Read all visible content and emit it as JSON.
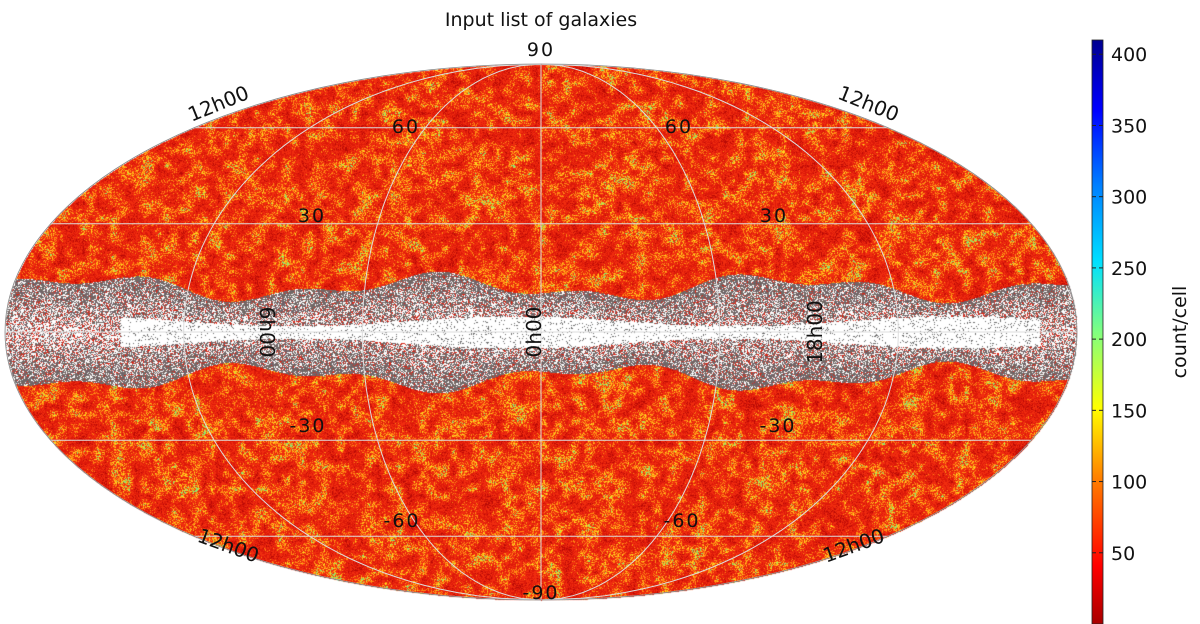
{
  "chart_data": {
    "type": "heatmap",
    "projection": "mollweide",
    "title": "Input list of galaxies",
    "colorbar": {
      "label": "count/cell",
      "ticks": [
        50,
        100,
        150,
        200,
        250,
        300,
        350,
        400
      ],
      "tick_labels": [
        "50",
        "100",
        "150",
        "200",
        "250",
        "300",
        "350",
        "400"
      ],
      "range": [
        0,
        410
      ],
      "colormap": "jet_reversed",
      "placement": "right"
    },
    "latitude_labels": [
      {
        "text": "90"
      },
      {
        "text": "60"
      },
      {
        "text": "60"
      },
      {
        "text": "30"
      },
      {
        "text": "30"
      },
      {
        "text": "-30"
      },
      {
        "text": "-30"
      },
      {
        "text": "-60"
      },
      {
        "text": "-60"
      },
      {
        "text": "-90"
      }
    ],
    "longitude_labels": [
      {
        "text": "12h00"
      },
      {
        "text": "12h00"
      },
      {
        "text": "12h00"
      },
      {
        "text": "12h00"
      },
      {
        "text": "6h00"
      },
      {
        "text": "0h00"
      },
      {
        "text": "18h00"
      }
    ],
    "grid": true,
    "masked_band": "galactic-plane",
    "colors": {
      "dominant": "#e8200c",
      "highlight": "#ffd21a",
      "masked_points": "#6b6b6b",
      "grid_lines": "#dddddd",
      "background": "#ffffff"
    }
  }
}
